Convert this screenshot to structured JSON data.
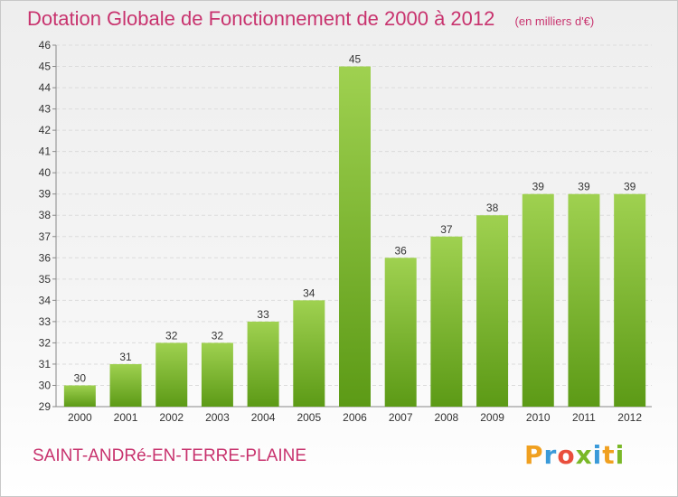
{
  "header": {
    "title": "Dotation Globale de Fonctionnement de 2000 à 2012",
    "unit": "(en milliers d'€)"
  },
  "footer": {
    "commune": "SAINT-ANDRé-EN-TERRE-PLAINE",
    "logo": {
      "letters": [
        "P",
        "r",
        "o",
        "x",
        "i",
        "t",
        "i"
      ],
      "colors": [
        "#f0a020",
        "#3a9ad9",
        "#e94e3c",
        "#7ab828",
        "#3a9ad9",
        "#f0a020",
        "#7ab828"
      ]
    }
  },
  "colors": {
    "bar_light": "#9fd150",
    "bar_dark": "#5c9a16",
    "text_accent": "#c8336e"
  },
  "chart_data": {
    "type": "bar",
    "title": "Dotation Globale de Fonctionnement de 2000 à 2012",
    "categories": [
      "2000",
      "2001",
      "2002",
      "2003",
      "2004",
      "2005",
      "2006",
      "2007",
      "2008",
      "2009",
      "2010",
      "2011",
      "2012"
    ],
    "values": [
      30,
      31,
      32,
      32,
      33,
      34,
      45,
      36,
      37,
      38,
      39,
      39,
      39
    ],
    "ylim": [
      29,
      46
    ],
    "yticks": [
      29,
      30,
      31,
      32,
      33,
      34,
      35,
      36,
      37,
      38,
      39,
      40,
      41,
      42,
      43,
      44,
      45,
      46
    ],
    "grid": true,
    "legend": "none"
  }
}
